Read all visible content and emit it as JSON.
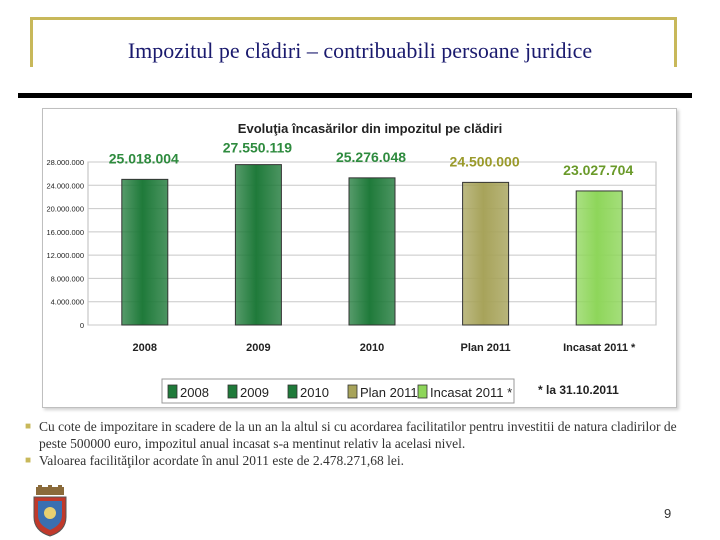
{
  "slide": {
    "title": "Impozitul pe clădiri – contribuabili persoane juridice",
    "page_number": "9",
    "bullets": [
      "Cu cote de impozitare in scadere de la un an la altul si cu acordarea facilitatilor pentru investitii de natura cladirilor de peste 500000 euro, impozitul anual incasat s-a mentinut relativ la acelasi nivel.",
      "Valoarea facilităţilor acordate în anul 2011 este de 2.478.271,68 lei."
    ],
    "logo_icon": "coat-of-arms-icon"
  },
  "chart_data": {
    "type": "bar",
    "title": "Evoluţia încasărilor din impozitul pe clădiri",
    "categories": [
      "2008",
      "2009",
      "2010",
      "Plan 2011",
      "Incasat 2011 *"
    ],
    "values": [
      25018004,
      27550119,
      25276048,
      24500000,
      23027704
    ],
    "value_labels": [
      "25.018.004",
      "27.550.119",
      "25.276.048",
      "24.500.000",
      "23.027.704"
    ],
    "label_colors": [
      "#2e8b3e",
      "#2e8b3e",
      "#2e8b3e",
      "#9a9a2a",
      "#6a9a2a"
    ],
    "colors": [
      "#1f7a3a",
      "#1f7a3a",
      "#1f7a3a",
      "#a7a35a",
      "#8ed65a"
    ],
    "legend": [
      "2008",
      "2009",
      "2010",
      "Plan 2011",
      "Incasat 2011 *"
    ],
    "legend_position": "bottom",
    "footnote": "* la 31.10.2011",
    "ylim": [
      0,
      28000000
    ],
    "yticks": [
      0,
      4000000,
      8000000,
      12000000,
      16000000,
      20000000,
      24000000,
      28000000
    ],
    "ytick_labels": [
      "0",
      "4.000.000",
      "8.000.000",
      "12.000.000",
      "16.000.000",
      "20.000.000",
      "24.000.000",
      "28.000.000"
    ],
    "grid": true,
    "xlabel": "",
    "ylabel": ""
  }
}
